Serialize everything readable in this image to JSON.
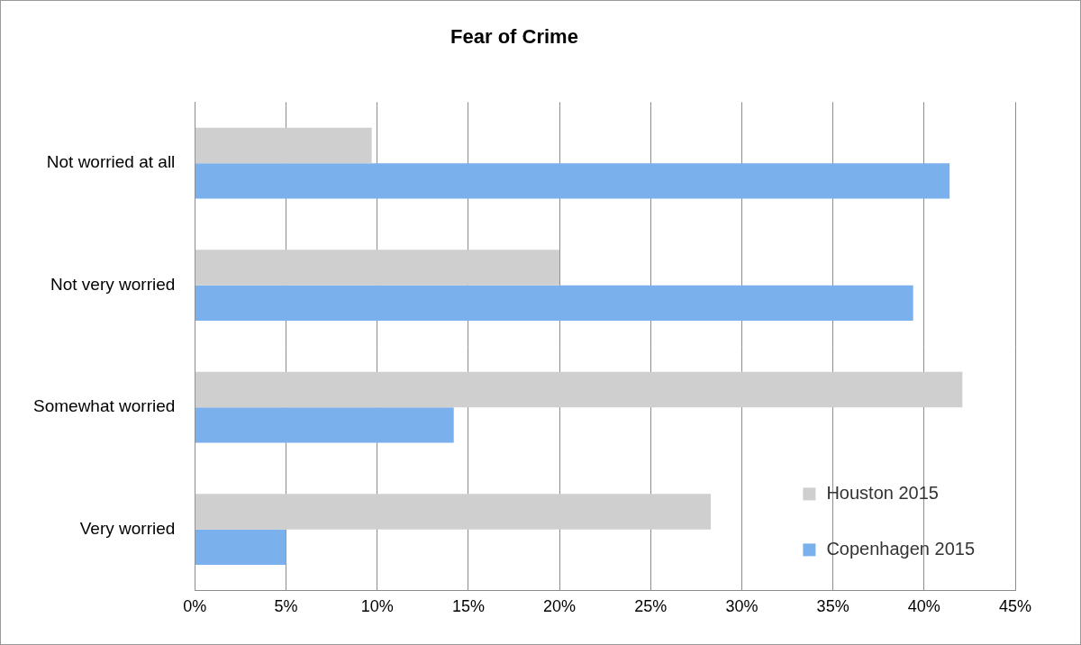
{
  "chart_data": {
    "type": "bar",
    "orientation": "horizontal",
    "title": "Fear of Crime",
    "categories": [
      "Not worried at all",
      "Not very worried",
      "Somewhat worried",
      "Very worried"
    ],
    "series": [
      {
        "name": "Houston 2015",
        "color": "#cfcfcf",
        "values": [
          9.7,
          20.0,
          42.1,
          28.3
        ]
      },
      {
        "name": "Copenhagen 2015",
        "color": "#7ab0ec",
        "values": [
          41.4,
          39.4,
          14.2,
          5.0
        ]
      }
    ],
    "xlim": [
      0,
      45
    ],
    "xticks": [
      {
        "value": 0,
        "label": "0%"
      },
      {
        "value": 5,
        "label": "5%"
      },
      {
        "value": 10,
        "label": "10%"
      },
      {
        "value": 15,
        "label": "15%"
      },
      {
        "value": 20,
        "label": "20%"
      },
      {
        "value": 25,
        "label": "25%"
      },
      {
        "value": 30,
        "label": "30%"
      },
      {
        "value": 35,
        "label": "35%"
      },
      {
        "value": 40,
        "label": "40%"
      },
      {
        "value": 45,
        "label": "45%"
      }
    ],
    "grid": true,
    "legend": "lower right"
  }
}
